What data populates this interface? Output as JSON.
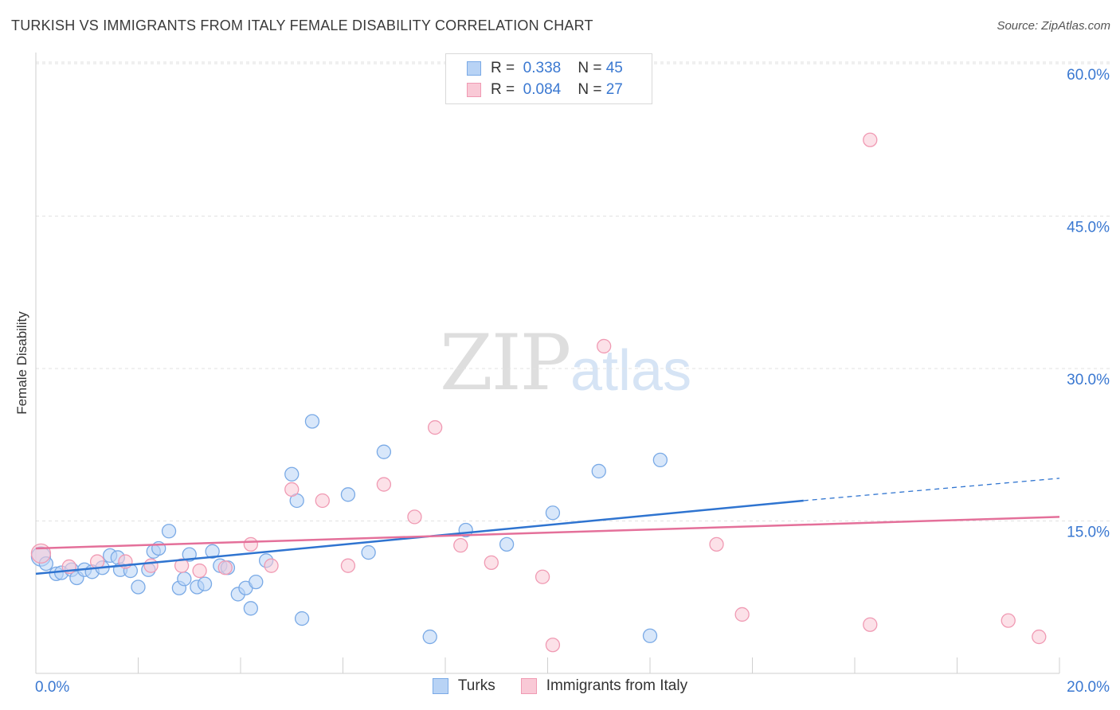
{
  "header": {
    "title": "TURKISH VS IMMIGRANTS FROM ITALY FEMALE DISABILITY CORRELATION CHART",
    "source": "Source: ZipAtlas.com"
  },
  "legend": {
    "rows": [
      {
        "r_label": "R =",
        "r_value": "0.338",
        "n_label": "N =",
        "n_value": "45"
      },
      {
        "r_label": "R =",
        "r_value": "0.084",
        "n_label": "N =",
        "n_value": "27"
      }
    ],
    "bottom": [
      "Turks",
      "Immigrants from Italy"
    ]
  },
  "watermark": {
    "zip": "ZIP",
    "atlas": "atlas"
  },
  "colors": {
    "turks_fill": "#b8d3f5",
    "turks_stroke": "#7aaae6",
    "turks_line": "#2f74d0",
    "italy_fill": "#f9c9d6",
    "italy_stroke": "#f09ab3",
    "italy_line": "#e4709a",
    "grid": "#e2e2e2",
    "axis_text": "#3a78d1"
  },
  "chart_data": {
    "type": "scatter",
    "ylabel": "Female Disability",
    "xlabel": "",
    "xlim": [
      0,
      20
    ],
    "ylim": [
      0,
      60
    ],
    "x_tick_labels": [
      "0.0%",
      "20.0%"
    ],
    "y_ticks": [
      15,
      30,
      45,
      60
    ],
    "y_tick_labels": [
      "15.0%",
      "30.0%",
      "45.0%",
      "60.0%"
    ],
    "grid": true,
    "series": [
      {
        "name": "Turks",
        "points": [
          [
            0.1,
            11.5
          ],
          [
            0.2,
            10.8
          ],
          [
            0.4,
            9.8
          ],
          [
            0.5,
            9.9
          ],
          [
            0.7,
            10.2
          ],
          [
            0.8,
            9.4
          ],
          [
            0.95,
            10.2
          ],
          [
            1.1,
            10.0
          ],
          [
            1.3,
            10.4
          ],
          [
            1.45,
            11.6
          ],
          [
            1.6,
            11.4
          ],
          [
            1.65,
            10.2
          ],
          [
            1.85,
            10.1
          ],
          [
            2.0,
            8.5
          ],
          [
            2.2,
            10.2
          ],
          [
            2.3,
            12.0
          ],
          [
            2.4,
            12.3
          ],
          [
            2.6,
            14.0
          ],
          [
            2.8,
            8.4
          ],
          [
            2.9,
            9.3
          ],
          [
            3.0,
            11.7
          ],
          [
            3.15,
            8.5
          ],
          [
            3.3,
            8.8
          ],
          [
            3.45,
            12.0
          ],
          [
            3.6,
            10.6
          ],
          [
            3.75,
            10.4
          ],
          [
            3.95,
            7.8
          ],
          [
            4.1,
            8.4
          ],
          [
            4.2,
            6.4
          ],
          [
            4.3,
            9.0
          ],
          [
            4.5,
            11.1
          ],
          [
            5.0,
            19.6
          ],
          [
            5.1,
            17.0
          ],
          [
            5.2,
            5.4
          ],
          [
            5.4,
            24.8
          ],
          [
            6.1,
            17.6
          ],
          [
            6.5,
            11.9
          ],
          [
            6.8,
            21.8
          ],
          [
            7.7,
            3.6
          ],
          [
            8.4,
            14.1
          ],
          [
            9.2,
            12.7
          ],
          [
            10.1,
            15.8
          ],
          [
            11.0,
            19.9
          ],
          [
            12.0,
            3.7
          ],
          [
            12.2,
            21.0
          ]
        ],
        "trend": {
          "x": [
            0,
            15
          ],
          "y": [
            9.8,
            17.0
          ],
          "dashed_to": [
            20,
            19.2
          ]
        }
      },
      {
        "name": "Immigrants from Italy",
        "points": [
          [
            0.1,
            11.8
          ],
          [
            0.65,
            10.5
          ],
          [
            1.2,
            11.0
          ],
          [
            1.75,
            11.0
          ],
          [
            2.25,
            10.6
          ],
          [
            2.85,
            10.6
          ],
          [
            3.2,
            10.1
          ],
          [
            3.7,
            10.4
          ],
          [
            4.2,
            12.7
          ],
          [
            4.6,
            10.6
          ],
          [
            5.0,
            18.1
          ],
          [
            5.6,
            17.0
          ],
          [
            6.1,
            10.6
          ],
          [
            6.8,
            18.6
          ],
          [
            7.4,
            15.4
          ],
          [
            7.8,
            24.2
          ],
          [
            8.3,
            12.6
          ],
          [
            8.9,
            10.9
          ],
          [
            9.9,
            9.5
          ],
          [
            10.1,
            2.8
          ],
          [
            11.1,
            32.2
          ],
          [
            13.3,
            12.7
          ],
          [
            13.8,
            5.8
          ],
          [
            16.3,
            52.5
          ],
          [
            16.3,
            4.8
          ],
          [
            19.0,
            5.2
          ],
          [
            19.6,
            3.6
          ]
        ],
        "trend": {
          "x": [
            0,
            20
          ],
          "y": [
            12.3,
            15.4
          ]
        }
      }
    ]
  }
}
